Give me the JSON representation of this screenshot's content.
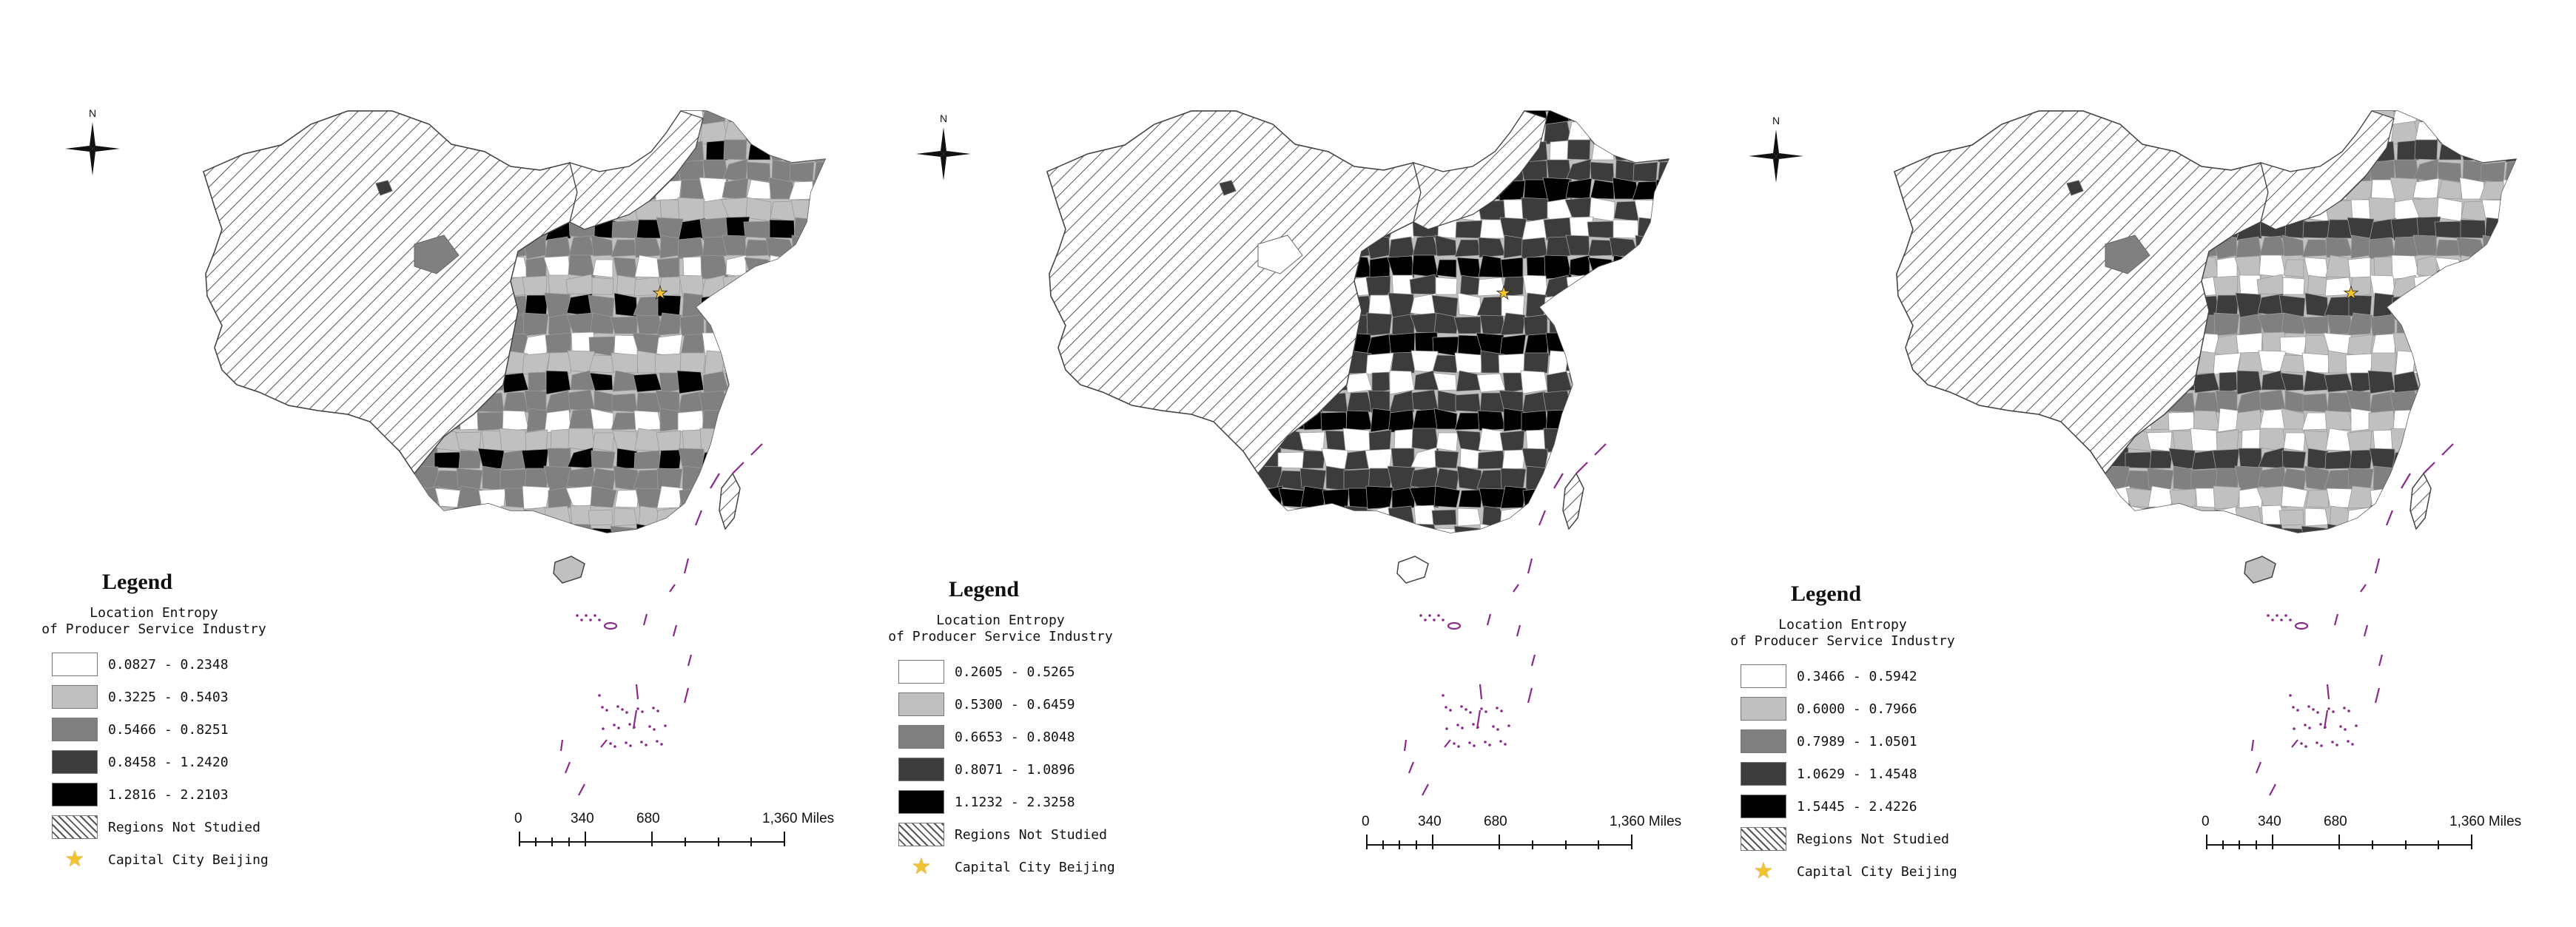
{
  "panels": [
    {
      "north_label": "N",
      "legend": {
        "title": "Legend",
        "subtitle_line1": "Location Entropy",
        "subtitle_line2": "of Producer Service Industry",
        "classes": [
          "0.0827 - 0.2348",
          "0.3225 - 0.5403",
          "0.5466 - 0.8251",
          "0.8458 - 1.2420",
          "1.2816 - 2.2103"
        ],
        "not_studied": "Regions Not Studied",
        "capital": "Capital City Beijing"
      },
      "scale": {
        "labels": [
          "0",
          "340",
          "680",
          "1,360 Miles"
        ]
      }
    },
    {
      "north_label": "N",
      "legend": {
        "title": "Legend",
        "subtitle_line1": "Location Entropy",
        "subtitle_line2": "of Producer Service Industry",
        "classes": [
          "0.2605 - 0.5265",
          "0.5300 - 0.6459",
          "0.6653 - 0.8048",
          "0.8071 - 1.0896",
          "1.1232 - 2.3258"
        ],
        "not_studied": "Regions Not Studied",
        "capital": "Capital City Beijing"
      },
      "scale": {
        "labels": [
          "0",
          "340",
          "680",
          "1,360 Miles"
        ]
      }
    },
    {
      "north_label": "N",
      "legend": {
        "title": "Legend",
        "subtitle_line1": "Location Entropy",
        "subtitle_line2": "of Producer Service Industry",
        "classes": [
          "0.3466 - 0.5942",
          "0.6000 - 0.7966",
          "0.7989 - 1.0501",
          "1.0629 - 1.4548",
          "1.5445 - 2.4226"
        ],
        "not_studied": "Regions Not Studied",
        "capital": "Capital City Beijing"
      },
      "scale": {
        "labels": [
          "0",
          "340",
          "680",
          "1,360 Miles"
        ]
      }
    }
  ],
  "colors": {
    "class_fills": [
      "#ffffff",
      "#c0c0c0",
      "#808080",
      "#3c3c3c",
      "#000000"
    ],
    "hatch": "#555555",
    "capital_star": "#f1c232",
    "islands": "#8a2a8a"
  },
  "choropleth_mix": [
    [
      1,
      2,
      1,
      2,
      3,
      1,
      2,
      0,
      3,
      2,
      1,
      4,
      2,
      1,
      3,
      2
    ],
    [
      0,
      3,
      3,
      2,
      4,
      0,
      3,
      2,
      3,
      1,
      0,
      3,
      4,
      2,
      3,
      0
    ],
    [
      1,
      1,
      0,
      2,
      1,
      3,
      1,
      1,
      2,
      0,
      1,
      2,
      1,
      3,
      1,
      0
    ]
  ]
}
